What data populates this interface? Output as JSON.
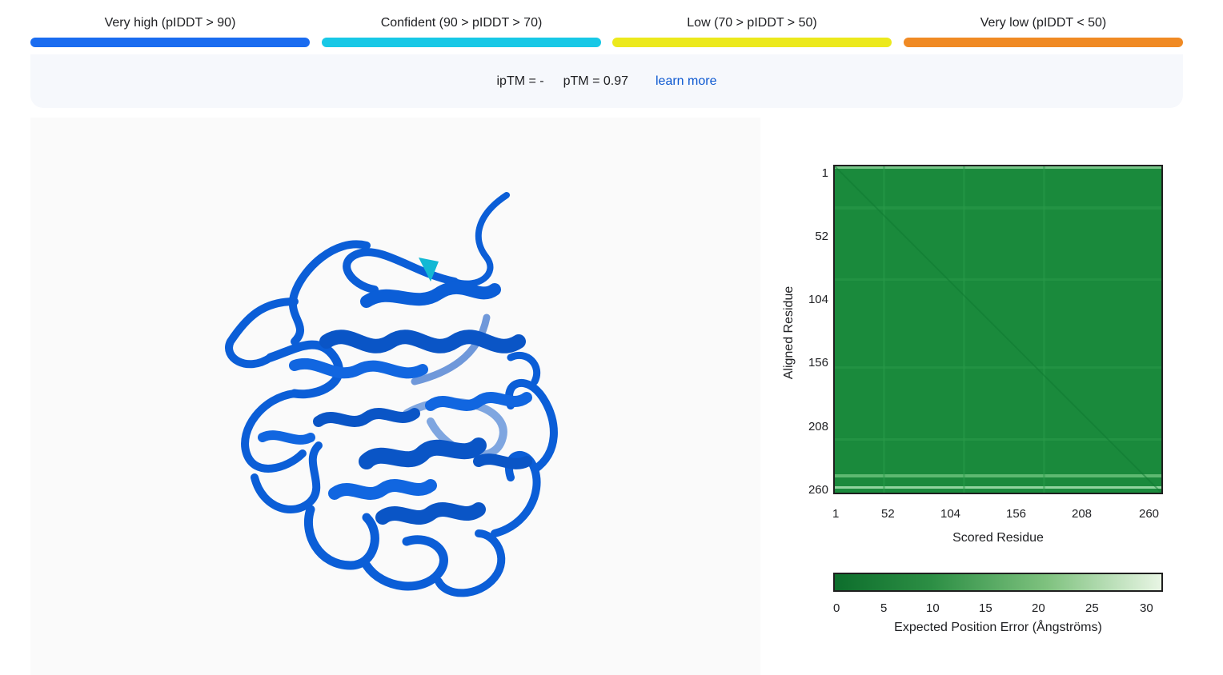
{
  "legend": [
    {
      "label": "Very high (pIDDT > 90)",
      "color": "#1a6cf0"
    },
    {
      "label": "Confident (90 > pIDDT > 70)",
      "color": "#18c8e6"
    },
    {
      "label": "Low (70 > pIDDT > 50)",
      "color": "#ece91c"
    },
    {
      "label": "Very low (pIDDT < 50)",
      "color": "#f08a24"
    }
  ],
  "metrics": {
    "iptm": "ipTM = -",
    "ptm": "pTM = 0.97",
    "learn_more": "learn more"
  },
  "structure": {
    "color_primary": "#0b5ed7",
    "color_accent": "#12b8d4"
  },
  "pae": {
    "y_ticks": [
      "1",
      "52",
      "104",
      "156",
      "208",
      "260"
    ],
    "x_ticks": [
      "1",
      "52",
      "104",
      "156",
      "208",
      "260"
    ],
    "y_label": "Aligned Residue",
    "x_label": "Scored Residue",
    "matrix_color": "#1a8a3c"
  },
  "colorbar": {
    "ticks": [
      "0",
      "5",
      "10",
      "15",
      "20",
      "25",
      "30"
    ],
    "label": "Expected Position Error (Ångströms)",
    "color_low": "#0d6e2c",
    "color_high": "#e8f5e4"
  }
}
